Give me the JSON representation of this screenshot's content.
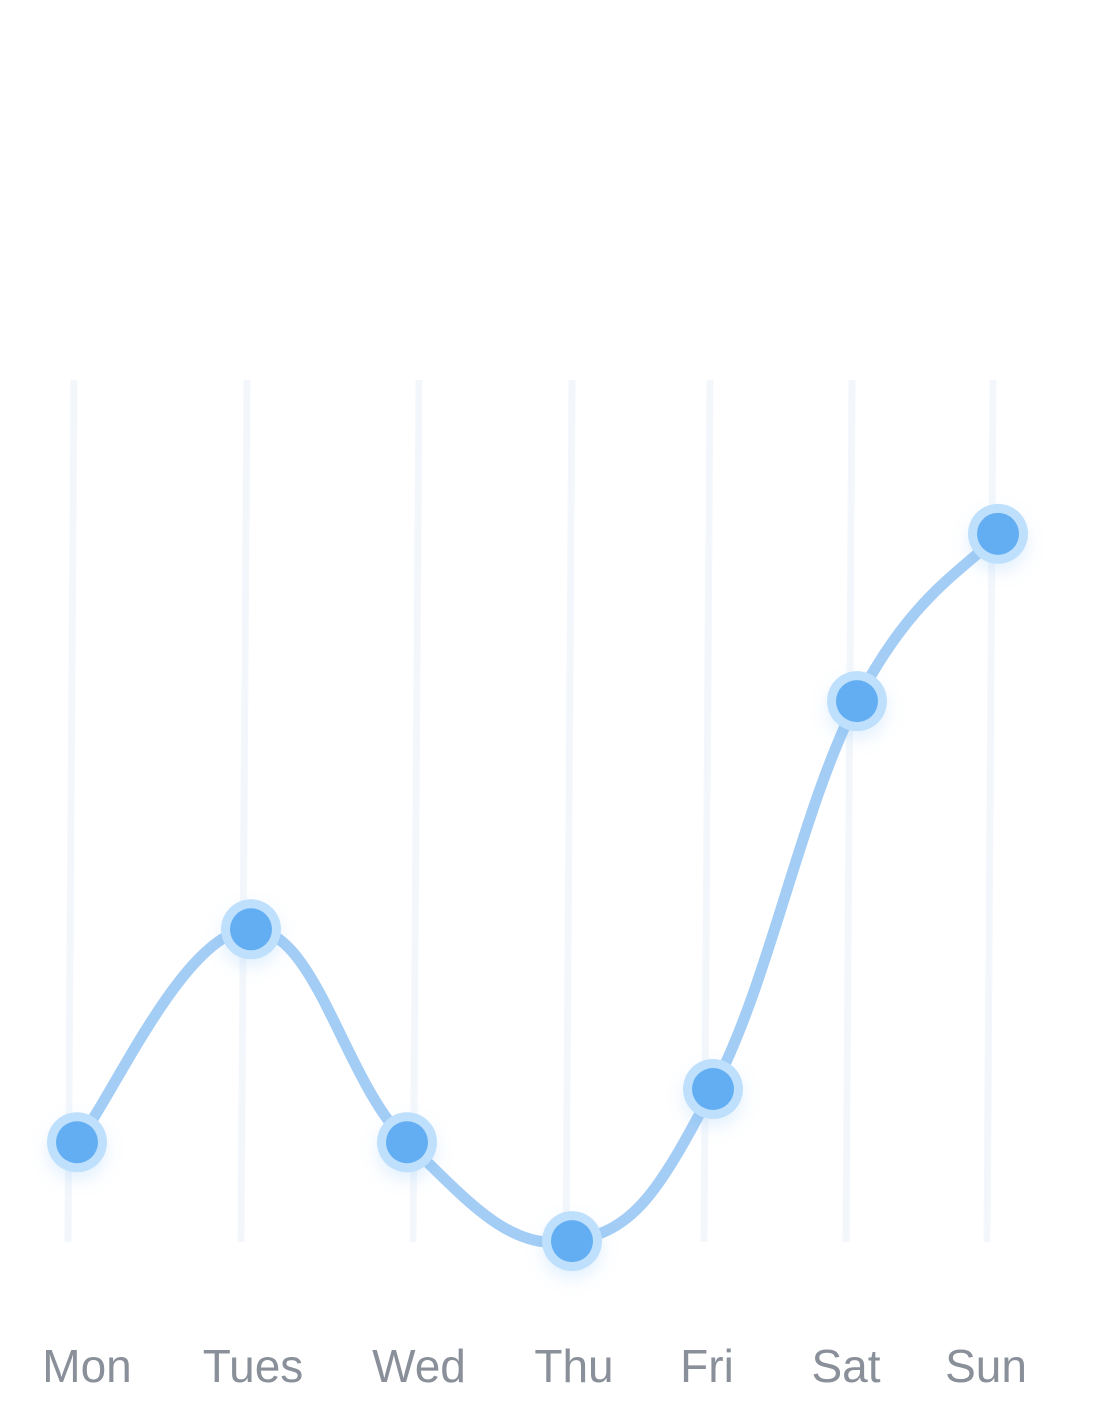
{
  "chart_data": {
    "type": "line",
    "categories": [
      "Mon",
      "Tues",
      "Wed",
      "Thu",
      "Fri",
      "Sat",
      "Sun"
    ],
    "series": [
      {
        "values": [
          37,
          51,
          37,
          30.5,
          40.5,
          66,
          77
        ]
      }
    ],
    "ylim": [
      0,
      100
    ],
    "smooth": true,
    "grid": "vertical",
    "legend": "none",
    "colors": {
      "line": "#a3cdf5",
      "point_fill": "#63aef2",
      "point_ring": "#bfe0fc",
      "grid": "#f3f7fc",
      "label": "#8a9099"
    }
  }
}
